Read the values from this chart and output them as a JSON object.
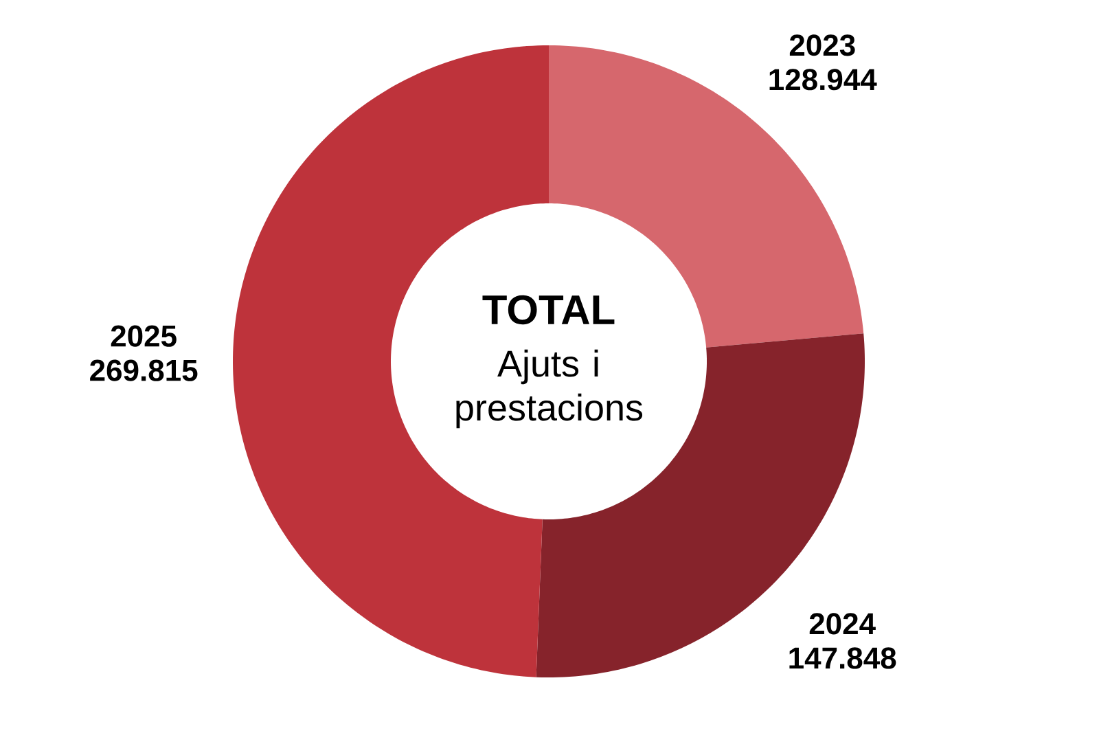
{
  "chart_data": {
    "type": "donut",
    "title": "TOTAL",
    "subtitle": "Ajuts i prestacions",
    "categories": [
      "2023",
      "2024",
      "2025"
    ],
    "values": [
      128944,
      147848,
      269815
    ],
    "value_labels": [
      "128.944",
      "147.848",
      "269.815"
    ],
    "colors": [
      "#d6676d",
      "#86232b",
      "#be333b"
    ]
  }
}
